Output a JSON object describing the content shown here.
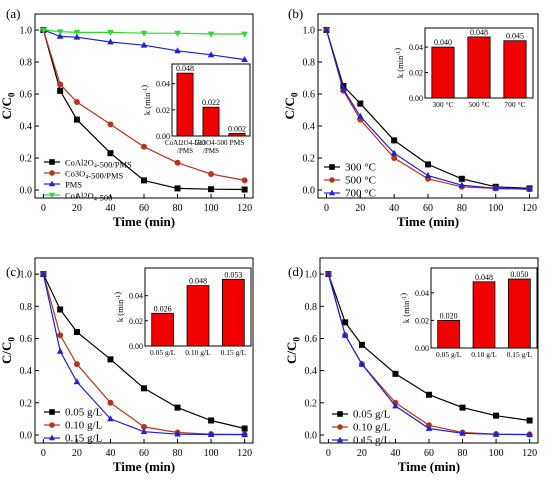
{
  "colors": {
    "black": "#000000",
    "brown": "#b5361f",
    "blue": "#1f1fd6",
    "green": "#2fd82f",
    "bar_fill": "#f00000"
  },
  "chart_data": [
    {
      "panel": "(a)",
      "type": "line",
      "xlabel": "Time (min)",
      "ylabel": "C/C0",
      "xlim": [
        -5,
        125
      ],
      "ylim": [
        -0.05,
        1.1
      ],
      "xticks": [
        0,
        20,
        40,
        60,
        80,
        100,
        120
      ],
      "yticks": [
        0.0,
        0.2,
        0.4,
        0.6,
        0.8,
        1.0
      ],
      "legend_position": "bottom-left",
      "x": [
        0,
        10,
        20,
        40,
        60,
        80,
        100,
        120
      ],
      "series": [
        {
          "name": "CoAl2O4-500/PMS",
          "color": "black",
          "marker": "square",
          "values": [
            1.0,
            0.62,
            0.44,
            0.23,
            0.06,
            0.01,
            0.005,
            0.003
          ]
        },
        {
          "name": "Co3O4-500/PMS",
          "color": "brown",
          "marker": "circle",
          "values": [
            1.0,
            0.66,
            0.55,
            0.41,
            0.27,
            0.17,
            0.1,
            0.06
          ]
        },
        {
          "name": "PMS",
          "color": "blue",
          "marker": "triangle-up",
          "values": [
            1.0,
            0.96,
            0.955,
            0.925,
            0.905,
            0.87,
            0.845,
            0.815
          ]
        },
        {
          "name": "CoAl2O4-500",
          "color": "green",
          "marker": "triangle-down",
          "values": [
            1.0,
            0.99,
            0.985,
            0.985,
            0.98,
            0.98,
            0.975,
            0.975
          ]
        }
      ],
      "inset": {
        "type": "bar",
        "ylabel": "k (min-1)",
        "ylim": [
          0,
          0.055
        ],
        "yticks": [
          0.0,
          0.02,
          0.04
        ],
        "categories": [
          "CoAl2O4-500/PMS",
          "Co3O4-500/PMS",
          "PMS"
        ],
        "values": [
          0.048,
          0.022,
          0.002
        ],
        "value_labels": [
          "0.048",
          "0.022",
          "0.002"
        ]
      }
    },
    {
      "panel": "(b)",
      "type": "line",
      "xlabel": "Time (min)",
      "ylabel": "C/C0",
      "xlim": [
        -5,
        125
      ],
      "ylim": [
        -0.05,
        1.1
      ],
      "xticks": [
        0,
        20,
        40,
        60,
        80,
        100,
        120
      ],
      "yticks": [
        0.0,
        0.2,
        0.4,
        0.6,
        0.8,
        1.0
      ],
      "legend_position": "bottom-left",
      "x": [
        0,
        10,
        20,
        40,
        60,
        80,
        100,
        120
      ],
      "series": [
        {
          "name": "300 °C",
          "color": "black",
          "marker": "square",
          "values": [
            1.0,
            0.65,
            0.54,
            0.31,
            0.16,
            0.07,
            0.02,
            0.01
          ]
        },
        {
          "name": "500 °C",
          "color": "brown",
          "marker": "circle",
          "values": [
            1.0,
            0.62,
            0.44,
            0.2,
            0.07,
            0.02,
            0.01,
            0.005
          ]
        },
        {
          "name": "700 °C",
          "color": "blue",
          "marker": "triangle-up",
          "values": [
            1.0,
            0.63,
            0.46,
            0.23,
            0.09,
            0.03,
            0.01,
            0.005
          ]
        }
      ],
      "inset": {
        "type": "bar",
        "ylabel": "k (min-1)",
        "ylim": [
          0,
          0.055
        ],
        "yticks": [
          0.0,
          0.02,
          0.04
        ],
        "categories": [
          "300 °C",
          "500 °C",
          "700 °C"
        ],
        "values": [
          0.04,
          0.048,
          0.045
        ],
        "value_labels": [
          "0.040",
          "0.048",
          "0.045"
        ]
      }
    },
    {
      "panel": "(c)",
      "type": "line",
      "xlabel": "Time (min)",
      "ylabel": "C/C0",
      "xlim": [
        -5,
        125
      ],
      "ylim": [
        -0.05,
        1.1
      ],
      "xticks": [
        0,
        20,
        40,
        60,
        80,
        100,
        120
      ],
      "yticks": [
        0.0,
        0.2,
        0.4,
        0.6,
        0.8,
        1.0
      ],
      "legend_position": "bottom-left",
      "x": [
        0,
        10,
        20,
        40,
        60,
        80,
        100,
        120
      ],
      "series": [
        {
          "name": "0.05 g/L",
          "color": "black",
          "marker": "square",
          "values": [
            1.0,
            0.78,
            0.64,
            0.47,
            0.29,
            0.17,
            0.09,
            0.04
          ]
        },
        {
          "name": "0.10 g/L",
          "color": "brown",
          "marker": "circle",
          "values": [
            1.0,
            0.62,
            0.44,
            0.2,
            0.05,
            0.015,
            0.005,
            0.003
          ]
        },
        {
          "name": "0.15 g/L",
          "color": "blue",
          "marker": "triangle-up",
          "values": [
            1.0,
            0.52,
            0.33,
            0.1,
            0.02,
            0.005,
            0.003,
            0.002
          ]
        }
      ],
      "inset": {
        "type": "bar",
        "ylabel": "k (min-1)",
        "ylim": [
          0,
          0.062
        ],
        "yticks": [
          0.0,
          0.02,
          0.04
        ],
        "categories": [
          "0.05 g/L",
          "0.10 g/L",
          "0.15 g/L"
        ],
        "values": [
          0.026,
          0.048,
          0.053
        ],
        "value_labels": [
          "0.026",
          "0.048",
          "0.053"
        ]
      }
    },
    {
      "panel": "(d)",
      "type": "line",
      "xlabel": "Time (min)",
      "ylabel": "C/C0",
      "xlim": [
        -5,
        125
      ],
      "ylim": [
        -0.05,
        1.1
      ],
      "xticks": [
        0,
        20,
        40,
        60,
        80,
        100,
        120
      ],
      "yticks": [
        0.0,
        0.2,
        0.4,
        0.6,
        0.8,
        1.0
      ],
      "legend_position": "bottom-left",
      "x": [
        0,
        10,
        20,
        40,
        60,
        80,
        100,
        120
      ],
      "series": [
        {
          "name": "0.05 g/L",
          "color": "black",
          "marker": "square",
          "values": [
            1.0,
            0.7,
            0.56,
            0.38,
            0.25,
            0.17,
            0.12,
            0.09
          ]
        },
        {
          "name": "0.10 g/L",
          "color": "brown",
          "marker": "circle",
          "values": [
            1.0,
            0.62,
            0.44,
            0.2,
            0.06,
            0.015,
            0.005,
            0.003
          ]
        },
        {
          "name": "0.15 g/L",
          "color": "blue",
          "marker": "triangle-up",
          "values": [
            1.0,
            0.62,
            0.44,
            0.18,
            0.04,
            0.01,
            0.004,
            0.002
          ]
        }
      ],
      "inset": {
        "type": "bar",
        "ylabel": "k (min-1)",
        "ylim": [
          0,
          0.058
        ],
        "yticks": [
          0.0,
          0.02,
          0.04
        ],
        "categories": [
          "0.05 g/L",
          "0.10 g/L",
          "0.15 g/L"
        ],
        "values": [
          0.02,
          0.048,
          0.05
        ],
        "value_labels": [
          "0.020",
          "0.048",
          "0.050"
        ]
      }
    }
  ]
}
